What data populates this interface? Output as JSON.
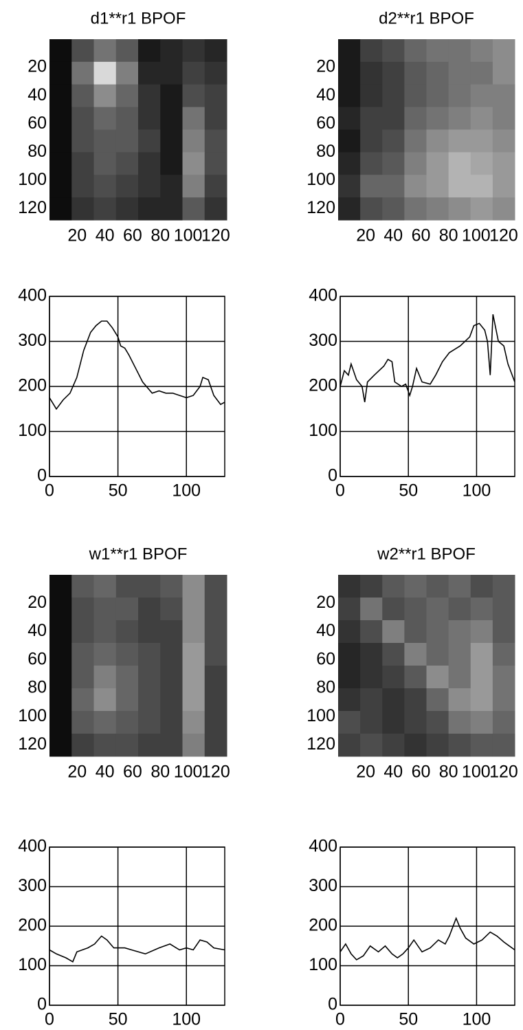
{
  "chart_data": [
    {
      "type": "image",
      "title": "d1**r1  BPOF",
      "xlim": [
        0,
        128
      ],
      "ylim": [
        0,
        128
      ],
      "yreverse": true,
      "xticks": [
        20,
        40,
        60,
        80,
        100,
        120
      ],
      "yticks": [
        20,
        40,
        60,
        80,
        100,
        120
      ],
      "values": [
        [
          5,
          30,
          45,
          35,
          10,
          15,
          20,
          15
        ],
        [
          5,
          45,
          85,
          50,
          15,
          15,
          25,
          20
        ],
        [
          5,
          35,
          55,
          40,
          20,
          10,
          30,
          25
        ],
        [
          5,
          30,
          40,
          35,
          20,
          10,
          45,
          25
        ],
        [
          5,
          30,
          35,
          35,
          25,
          10,
          50,
          30
        ],
        [
          5,
          25,
          35,
          30,
          20,
          10,
          55,
          30
        ],
        [
          5,
          25,
          30,
          25,
          20,
          15,
          50,
          25
        ],
        [
          5,
          20,
          25,
          20,
          15,
          15,
          35,
          20
        ]
      ]
    },
    {
      "type": "image",
      "title": "d2**r1  BPOF",
      "xlim": [
        0,
        128
      ],
      "ylim": [
        0,
        128
      ],
      "yreverse": true,
      "xticks": [
        20,
        40,
        60,
        80,
        100,
        120
      ],
      "yticks": [
        20,
        40,
        60,
        80,
        100,
        120
      ],
      "values": [
        [
          10,
          25,
          30,
          40,
          45,
          45,
          50,
          55
        ],
        [
          10,
          20,
          25,
          35,
          40,
          45,
          45,
          55
        ],
        [
          10,
          20,
          25,
          35,
          40,
          45,
          50,
          50
        ],
        [
          15,
          25,
          25,
          40,
          45,
          50,
          55,
          50
        ],
        [
          10,
          25,
          30,
          45,
          55,
          60,
          60,
          55
        ],
        [
          15,
          30,
          35,
          50,
          60,
          70,
          65,
          60
        ],
        [
          20,
          40,
          40,
          55,
          60,
          70,
          70,
          60
        ],
        [
          15,
          30,
          35,
          45,
          50,
          55,
          60,
          55
        ]
      ]
    },
    {
      "type": "line",
      "xlim": [
        0,
        128
      ],
      "ylim": [
        0,
        400
      ],
      "xticks": [
        0,
        50,
        100
      ],
      "yticks": [
        0,
        100,
        200,
        300,
        400
      ],
      "grid": true,
      "color": "#000000",
      "x": [
        0,
        5,
        10,
        15,
        20,
        25,
        30,
        34,
        38,
        42,
        46,
        50,
        52,
        55,
        58,
        63,
        68,
        75,
        80,
        85,
        90,
        95,
        100,
        105,
        110,
        112,
        116,
        120,
        125,
        128
      ],
      "values": [
        175,
        150,
        170,
        185,
        220,
        280,
        320,
        335,
        345,
        345,
        330,
        310,
        290,
        285,
        270,
        240,
        210,
        185,
        190,
        185,
        185,
        180,
        175,
        180,
        200,
        220,
        215,
        180,
        160,
        165
      ]
    },
    {
      "type": "line",
      "xlim": [
        0,
        128
      ],
      "ylim": [
        0,
        400
      ],
      "xticks": [
        0,
        50,
        100
      ],
      "yticks": [
        0,
        100,
        200,
        300,
        400
      ],
      "grid": true,
      "color": "#000000",
      "x": [
        0,
        3,
        6,
        8,
        12,
        16,
        18,
        20,
        25,
        32,
        35,
        38,
        40,
        45,
        48,
        51,
        53,
        56,
        60,
        66,
        70,
        75,
        80,
        88,
        95,
        98,
        102,
        106,
        108,
        110,
        112,
        116,
        120,
        123,
        128
      ],
      "values": [
        200,
        235,
        225,
        250,
        215,
        200,
        165,
        210,
        225,
        245,
        260,
        255,
        210,
        200,
        205,
        180,
        200,
        240,
        210,
        205,
        225,
        255,
        275,
        290,
        310,
        335,
        340,
        325,
        300,
        225,
        360,
        300,
        290,
        250,
        210
      ]
    },
    {
      "type": "image",
      "title": "w1**r1  BPOF",
      "xlim": [
        0,
        128
      ],
      "ylim": [
        0,
        128
      ],
      "yreverse": true,
      "xticks": [
        20,
        40,
        60,
        80,
        100,
        120
      ],
      "yticks": [
        20,
        40,
        60,
        80,
        100,
        120
      ],
      "values": [
        [
          5,
          35,
          40,
          30,
          30,
          35,
          55,
          30
        ],
        [
          5,
          30,
          35,
          35,
          25,
          30,
          55,
          30
        ],
        [
          5,
          30,
          35,
          30,
          25,
          25,
          55,
          30
        ],
        [
          5,
          35,
          40,
          35,
          30,
          25,
          60,
          30
        ],
        [
          5,
          35,
          50,
          40,
          30,
          25,
          60,
          25
        ],
        [
          5,
          40,
          55,
          40,
          30,
          25,
          60,
          25
        ],
        [
          5,
          35,
          40,
          35,
          30,
          25,
          55,
          25
        ],
        [
          5,
          25,
          30,
          30,
          25,
          25,
          50,
          25
        ]
      ]
    },
    {
      "type": "image",
      "title": "w2**r1  BPOF",
      "xlim": [
        0,
        128
      ],
      "ylim": [
        0,
        128
      ],
      "yreverse": true,
      "xticks": [
        20,
        40,
        60,
        80,
        100,
        120
      ],
      "yticks": [
        20,
        40,
        60,
        80,
        100,
        120
      ],
      "values": [
        [
          20,
          25,
          35,
          40,
          35,
          40,
          30,
          35
        ],
        [
          25,
          45,
          30,
          35,
          40,
          35,
          40,
          35
        ],
        [
          20,
          30,
          50,
          35,
          40,
          45,
          50,
          35
        ],
        [
          15,
          20,
          30,
          50,
          40,
          45,
          60,
          40
        ],
        [
          15,
          20,
          25,
          35,
          55,
          45,
          60,
          45
        ],
        [
          20,
          25,
          20,
          25,
          40,
          55,
          60,
          45
        ],
        [
          30,
          25,
          20,
          25,
          30,
          45,
          50,
          40
        ],
        [
          25,
          30,
          25,
          20,
          25,
          30,
          35,
          35
        ]
      ]
    },
    {
      "type": "line",
      "xlim": [
        0,
        128
      ],
      "ylim": [
        0,
        400
      ],
      "xticks": [
        0,
        50,
        100
      ],
      "yticks": [
        0,
        100,
        200,
        300,
        400
      ],
      "grid": true,
      "color": "#000000",
      "x": [
        0,
        5,
        12,
        17,
        20,
        28,
        33,
        38,
        42,
        47,
        55,
        60,
        70,
        80,
        88,
        95,
        100,
        105,
        110,
        115,
        120,
        128
      ],
      "values": [
        140,
        130,
        120,
        110,
        135,
        145,
        155,
        175,
        165,
        145,
        145,
        140,
        130,
        145,
        155,
        140,
        145,
        140,
        165,
        160,
        145,
        140
      ]
    },
    {
      "type": "line",
      "xlim": [
        0,
        128
      ],
      "ylim": [
        0,
        400
      ],
      "xticks": [
        0,
        50,
        100
      ],
      "yticks": [
        0,
        100,
        200,
        300,
        400
      ],
      "grid": true,
      "color": "#000000",
      "x": [
        0,
        4,
        8,
        12,
        17,
        22,
        28,
        33,
        38,
        42,
        46,
        50,
        54,
        60,
        66,
        72,
        77,
        80,
        85,
        88,
        92,
        98,
        104,
        110,
        115,
        120,
        124,
        128
      ],
      "values": [
        135,
        155,
        130,
        115,
        125,
        150,
        135,
        150,
        130,
        120,
        130,
        145,
        165,
        135,
        145,
        165,
        155,
        175,
        220,
        195,
        170,
        155,
        165,
        185,
        175,
        160,
        150,
        140
      ]
    }
  ]
}
